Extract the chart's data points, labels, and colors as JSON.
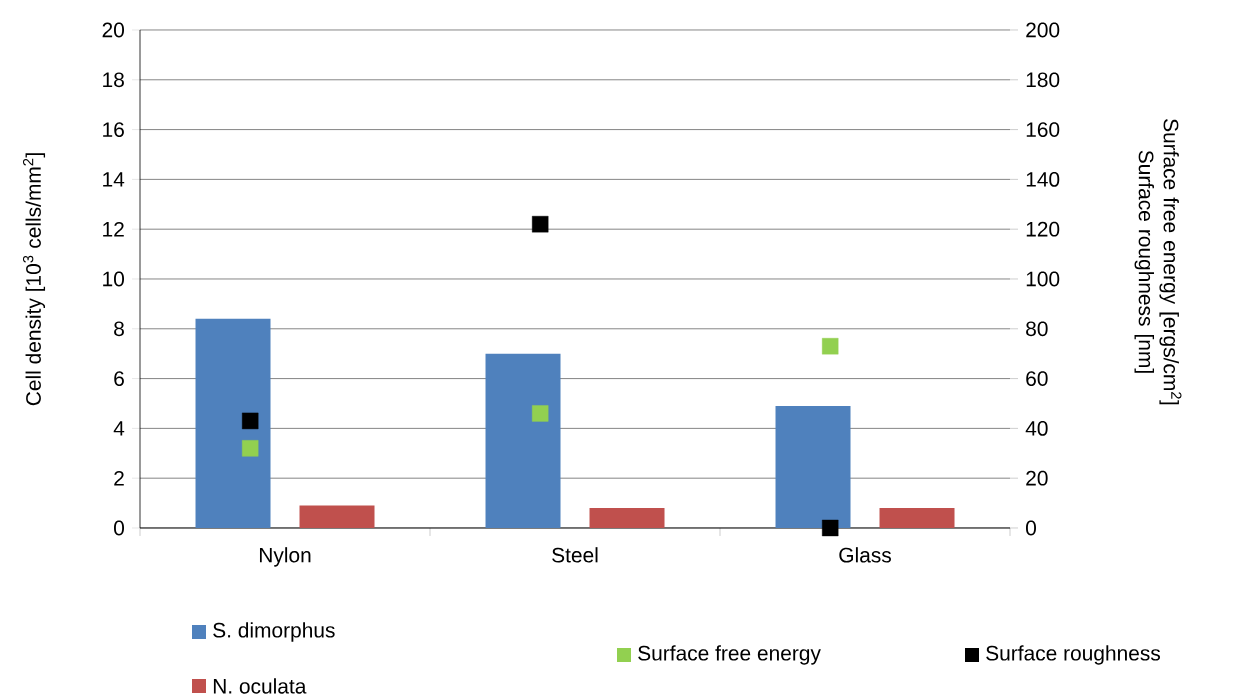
{
  "chart_data": {
    "type": "bar",
    "categories": [
      "Nylon",
      "Steel",
      "Glass"
    ],
    "ylabel": "Cell density [10$^{3}$ cells/mm$^{2}$]",
    "y2label": "Surface free energy [ergs/cm$^{2}$] Surface roughness [nm]",
    "ylim": [
      0,
      20
    ],
    "yticks": [
      0,
      2,
      4,
      6,
      8,
      10,
      12,
      14,
      16,
      18,
      20
    ],
    "y2lim": [
      0,
      200
    ],
    "y2ticks": [
      0,
      20,
      40,
      60,
      80,
      100,
      120,
      140,
      160,
      180,
      200
    ],
    "grid": "y",
    "legend": "bottom",
    "marker": "square",
    "series": [
      {
        "name": "S. dimorphus",
        "type": "bar",
        "color": "#4f81bd",
        "values": [
          8.4,
          7.0,
          4.9
        ]
      },
      {
        "name": "N. oculata",
        "type": "bar",
        "color": "#c0504d",
        "values": [
          0.9,
          0.8,
          0.8
        ]
      },
      {
        "name": "Surface free energy",
        "type": "scatter",
        "axis": "y2",
        "color": "#92d050",
        "x": [
          "Nylon",
          "Steel",
          "Glass"
        ],
        "values": [
          32,
          46,
          73
        ]
      },
      {
        "name": "Surface roughness",
        "type": "scatter",
        "axis": "y2",
        "color": "#000000",
        "x": [
          "Nylon",
          "Steel",
          "Glass"
        ],
        "values": [
          43,
          122,
          0
        ]
      }
    ]
  }
}
